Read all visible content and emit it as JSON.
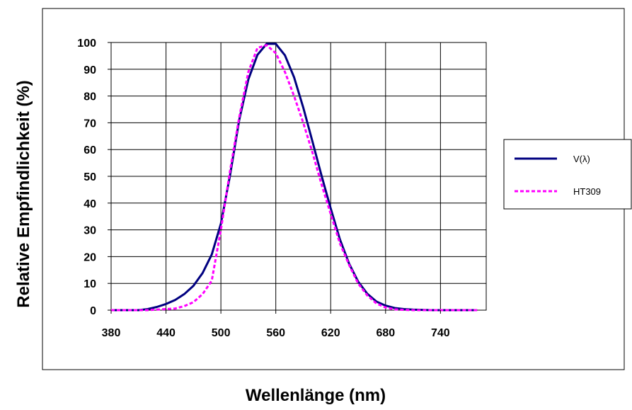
{
  "chart_data": {
    "type": "line",
    "xlabel": "Wellenlänge (nm)",
    "ylabel": "Relative Empfindlichkeit (%)",
    "xlim": [
      380,
      790
    ],
    "ylim": [
      0,
      100
    ],
    "xticks": [
      380,
      440,
      500,
      560,
      620,
      680,
      740
    ],
    "yticks": [
      0,
      10,
      20,
      30,
      40,
      50,
      60,
      70,
      80,
      90,
      100
    ],
    "xtick_labels": [
      "380",
      "440",
      "500",
      "560",
      "620",
      "680",
      "740"
    ],
    "ytick_labels": [
      "0",
      "10",
      "20",
      "30",
      "40",
      "50",
      "60",
      "70",
      "80",
      "90",
      "100"
    ],
    "grid": true,
    "legend_position": "right",
    "series": [
      {
        "name": "V(λ)",
        "color": "#000080",
        "style": "solid",
        "x": [
          380,
          390,
          400,
          410,
          420,
          430,
          440,
          450,
          460,
          470,
          480,
          490,
          500,
          510,
          520,
          530,
          540,
          550,
          560,
          570,
          580,
          590,
          600,
          610,
          620,
          630,
          640,
          650,
          660,
          670,
          680,
          690,
          700,
          710,
          720,
          730,
          740,
          750,
          760,
          770,
          780
        ],
        "values": [
          0,
          0,
          0,
          0,
          0.4,
          1.2,
          2.3,
          3.8,
          6,
          9.1,
          13.9,
          20.8,
          32.3,
          50.3,
          71,
          86.2,
          95.4,
          99.5,
          99.5,
          95.2,
          87,
          75.7,
          63.1,
          50.3,
          38.1,
          26.5,
          17.5,
          10.7,
          6.1,
          3.2,
          1.7,
          0.8,
          0.4,
          0.2,
          0.1,
          0,
          0,
          0,
          0,
          0,
          0
        ]
      },
      {
        "name": "HT309",
        "color": "#ff00ff",
        "style": "dashed",
        "x": [
          380,
          390,
          400,
          410,
          420,
          430,
          440,
          450,
          460,
          470,
          480,
          490,
          500,
          510,
          520,
          530,
          540,
          550,
          560,
          570,
          580,
          590,
          600,
          610,
          620,
          630,
          640,
          650,
          660,
          670,
          680,
          690,
          700,
          710,
          720,
          730,
          740,
          750,
          760,
          770,
          780
        ],
        "values": [
          0,
          0,
          0,
          0,
          0,
          0.2,
          0.4,
          0.6,
          1.5,
          3,
          6,
          11,
          30,
          52,
          72,
          89,
          98,
          99,
          96,
          89,
          80,
          70,
          59,
          47,
          36,
          25,
          17,
          10,
          5.5,
          2.5,
          1,
          0.3,
          0.1,
          0,
          0,
          0,
          0,
          0,
          0,
          0,
          0
        ]
      }
    ]
  }
}
